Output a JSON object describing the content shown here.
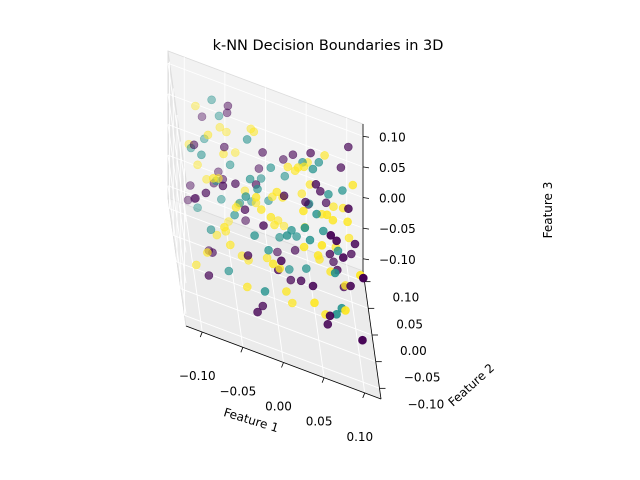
{
  "chart_data": {
    "type": "scatter",
    "projection": "3d",
    "title": "k-NN Decision Boundaries in 3D",
    "xlabel": "Feature 1",
    "ylabel": "Feature 2",
    "zlabel": "Feature 3",
    "xlim": [
      -0.12,
      0.12
    ],
    "ylim": [
      -0.12,
      0.12
    ],
    "zlim": [
      -0.12,
      0.12
    ],
    "xticks": [
      -0.1,
      -0.05,
      0.0,
      0.05,
      0.1
    ],
    "yticks": [
      -0.1,
      -0.05,
      0.0,
      0.05,
      0.1
    ],
    "zticks": [
      -0.1,
      -0.05,
      0.0,
      0.05,
      0.1
    ],
    "xtick_labels": [
      "−0.10",
      "−0.05",
      "0.00",
      "0.05",
      "0.10"
    ],
    "ytick_labels": [
      "−0.10",
      "−0.05",
      "0.00",
      "0.05",
      "0.10"
    ],
    "ztick_labels": [
      "−0.10",
      "−0.05",
      "0.00",
      "0.05",
      "0.10"
    ],
    "grid": true,
    "class_colors": [
      "#440154",
      "#21918c",
      "#fde725"
    ],
    "series": [
      {
        "class_index": 0,
        "points": [
          [
            -0.08,
            0.1,
            0.05
          ],
          [
            0.1,
            0.1,
            0.09
          ],
          [
            0.09,
            0.05,
            -0.1
          ],
          [
            -0.1,
            -0.03,
            0.02
          ],
          [
            0.1,
            -0.09,
            -0.06
          ],
          [
            -0.05,
            0.09,
            0.08
          ],
          [
            0.06,
            -0.1,
            0.1
          ],
          [
            -0.09,
            -0.1,
            -0.04
          ],
          [
            0.03,
            0.08,
            0.06
          ],
          [
            -0.02,
            -0.06,
            -0.09
          ],
          [
            0.07,
            0.02,
            -0.03
          ],
          [
            -0.06,
            0.04,
            0.01
          ],
          [
            0.01,
            -0.02,
            0.07
          ],
          [
            0.08,
            -0.05,
            0.03
          ],
          [
            -0.03,
            0.06,
            -0.06
          ],
          [
            0.05,
            0.09,
            -0.02
          ],
          [
            -0.07,
            -0.07,
            0.09
          ],
          [
            0.02,
            0.0,
            -0.08
          ],
          [
            -0.1,
            0.07,
            -0.07
          ],
          [
            0.09,
            -0.01,
            0.08
          ],
          [
            -0.01,
            0.1,
            0.0
          ],
          [
            0.04,
            -0.08,
            -0.01
          ],
          [
            -0.04,
            -0.04,
            0.04
          ],
          [
            0.1,
            0.06,
            -0.05
          ],
          [
            -0.08,
            0.01,
            -0.09
          ],
          [
            0.06,
            0.04,
            0.05
          ],
          [
            0.0,
            -0.09,
            0.02
          ],
          [
            -0.05,
            0.08,
            0.1
          ],
          [
            0.08,
            0.08,
            -0.09
          ],
          [
            -0.09,
            -0.06,
            0.06
          ],
          [
            0.03,
            -0.03,
            -0.05
          ],
          [
            -0.02,
            0.03,
            0.03
          ],
          [
            0.07,
            -0.07,
            0.07
          ],
          [
            -0.06,
            0.1,
            -0.03
          ],
          [
            0.1,
            0.01,
            0.01
          ],
          [
            -0.03,
            -0.1,
            -0.07
          ],
          [
            0.05,
            0.06,
            0.09
          ],
          [
            -0.07,
            0.05,
            -0.01
          ],
          [
            0.01,
            0.07,
            -0.1
          ],
          [
            0.09,
            -0.04,
            -0.02
          ],
          [
            -0.1,
            -0.01,
            0.09
          ],
          [
            0.04,
            0.02,
            0.04
          ],
          [
            -0.04,
            -0.08,
            0.0
          ],
          [
            0.06,
            -0.06,
            -0.08
          ],
          [
            -0.01,
            0.05,
            0.07
          ],
          [
            0.08,
            0.03,
            -0.06
          ],
          [
            -0.08,
            -0.04,
            -0.05
          ],
          [
            0.02,
            0.1,
            0.03
          ],
          [
            -0.05,
            -0.02,
            0.06
          ],
          [
            0.1,
            -0.1,
            0.05
          ],
          [
            0.07,
            0.07,
            0.01
          ],
          [
            -0.09,
            0.09,
            -0.08
          ],
          [
            0.0,
            -0.05,
            -0.03
          ],
          [
            0.05,
            -0.01,
            0.1
          ],
          [
            -0.06,
            0.02,
            0.08
          ],
          [
            0.03,
            0.05,
            -0.07
          ],
          [
            -0.02,
            -0.07,
            0.05
          ],
          [
            0.09,
            0.09,
            0.06
          ],
          [
            -0.1,
            0.04,
            -0.02
          ],
          [
            0.06,
            -0.09,
            -0.04
          ]
        ]
      },
      {
        "class_index": 1,
        "points": [
          [
            -0.03,
            0.04,
            0.09
          ],
          [
            0.02,
            0.08,
            0.02
          ],
          [
            -0.06,
            0.06,
            -0.04
          ],
          [
            0.05,
            -0.02,
            0.06
          ],
          [
            -0.01,
            -0.03,
            -0.02
          ],
          [
            0.04,
            0.01,
            -0.06
          ],
          [
            -0.08,
            0.07,
            0.04
          ],
          [
            0.07,
            -0.05,
            0.0
          ],
          [
            0.0,
            0.05,
            0.05
          ],
          [
            -0.04,
            -0.05,
            0.07
          ],
          [
            0.03,
            0.03,
            -0.03
          ],
          [
            -0.07,
            0.02,
            0.02
          ],
          [
            0.06,
            0.06,
            0.08
          ],
          [
            -0.02,
            0.09,
            -0.05
          ],
          [
            0.08,
            -0.03,
            -0.07
          ],
          [
            -0.05,
            -0.01,
            0.0
          ],
          [
            0.01,
            -0.06,
            0.04
          ],
          [
            -0.09,
            0.05,
            -0.06
          ],
          [
            0.05,
            0.08,
            -0.01
          ],
          [
            -0.03,
            0.0,
            0.06
          ],
          [
            0.04,
            -0.04,
            0.03
          ],
          [
            -0.06,
            0.09,
            0.07
          ],
          [
            0.02,
            0.02,
            -0.08
          ],
          [
            -0.01,
            0.07,
            0.01
          ],
          [
            0.07,
            0.04,
            0.05
          ],
          [
            -0.08,
            -0.02,
            -0.03
          ],
          [
            0.03,
            -0.08,
            0.08
          ],
          [
            -0.04,
            0.03,
            -0.01
          ],
          [
            0.06,
            0.0,
            0.02
          ],
          [
            -0.02,
            -0.09,
            -0.04
          ],
          [
            0.09,
            0.07,
            0.04
          ],
          [
            -0.07,
            0.08,
            0.1
          ],
          [
            0.01,
            0.04,
            -0.05
          ],
          [
            -0.05,
            0.05,
            0.03
          ],
          [
            0.04,
            0.06,
            0.07
          ],
          [
            -0.03,
            -0.06,
            0.02
          ],
          [
            0.08,
            0.02,
            -0.02
          ],
          [
            -0.1,
            0.03,
            0.05
          ],
          [
            0.02,
            -0.01,
            0.01
          ],
          [
            -0.06,
            -0.04,
            -0.07
          ],
          [
            0.05,
            0.03,
            0.09
          ],
          [
            0.0,
            0.08,
            -0.03
          ],
          [
            -0.02,
            0.01,
            0.04
          ],
          [
            0.07,
            -0.07,
            -0.05
          ],
          [
            -0.09,
            0.0,
            0.07
          ]
        ]
      },
      {
        "class_index": 2,
        "points": [
          [
            0.0,
            0.0,
            0.0
          ],
          [
            -0.06,
            0.03,
            0.06
          ],
          [
            0.05,
            0.07,
            0.03
          ],
          [
            -0.02,
            -0.04,
            0.05
          ],
          [
            0.08,
            0.05,
            -0.04
          ],
          [
            -0.09,
            -0.08,
            -0.02
          ],
          [
            0.03,
            -0.06,
            0.09
          ],
          [
            -0.04,
            0.09,
            0.02
          ],
          [
            0.06,
            -0.03,
            -0.09
          ],
          [
            -0.07,
            0.01,
            -0.06
          ],
          [
            0.02,
            0.04,
            0.07
          ],
          [
            -0.01,
            -0.09,
            0.01
          ],
          [
            0.09,
            0.0,
            0.05
          ],
          [
            -0.05,
            0.07,
            -0.08
          ],
          [
            0.04,
            -0.1,
            -0.02
          ],
          [
            -0.08,
            -0.05,
            0.08
          ],
          [
            0.01,
            0.06,
            -0.04
          ],
          [
            -0.03,
            0.02,
            -0.09
          ],
          [
            0.07,
            0.09,
            0.07
          ],
          [
            -0.1,
            0.06,
            0.03
          ],
          [
            0.05,
            -0.04,
            0.01
          ],
          [
            -0.02,
            0.1,
            0.06
          ],
          [
            0.1,
            -0.06,
            0.02
          ],
          [
            -0.06,
            -0.06,
            -0.01
          ],
          [
            0.03,
            0.01,
            0.1
          ],
          [
            -0.04,
            -0.07,
            -0.06
          ],
          [
            0.06,
            0.05,
            -0.07
          ],
          [
            -0.08,
            0.04,
            0.0
          ],
          [
            0.0,
            -0.03,
            0.08
          ],
          [
            0.08,
            0.08,
            0.0
          ],
          [
            -0.05,
            -0.03,
            0.03
          ],
          [
            0.02,
            0.09,
            -0.07
          ],
          [
            -0.01,
            -0.01,
            -0.05
          ],
          [
            0.07,
            -0.02,
            0.06
          ],
          [
            -0.09,
            0.08,
            0.08
          ],
          [
            0.04,
            0.03,
            -0.01
          ],
          [
            -0.03,
            -0.08,
            0.1
          ],
          [
            0.09,
            0.03,
            -0.08
          ],
          [
            -0.07,
            -0.01,
            0.05
          ],
          [
            0.01,
            -0.05,
            -0.06
          ],
          [
            0.05,
            0.1,
            0.04
          ],
          [
            -0.06,
            0.0,
            -0.04
          ],
          [
            0.03,
            -0.07,
            0.04
          ],
          [
            -0.02,
            0.06,
            0.09
          ],
          [
            0.1,
            0.04,
            0.08
          ],
          [
            -0.1,
            -0.04,
            -0.08
          ],
          [
            0.06,
            0.02,
            0.03
          ],
          [
            -0.04,
            0.05,
            -0.03
          ],
          [
            0.0,
            0.03,
            0.02
          ],
          [
            0.08,
            -0.08,
            -0.03
          ],
          [
            -0.08,
            0.02,
            0.09
          ],
          [
            0.02,
            -0.02,
            -0.1
          ],
          [
            -0.05,
            0.1,
            0.04
          ],
          [
            0.04,
            0.07,
            0.01
          ],
          [
            -0.01,
            -0.06,
            0.06
          ],
          [
            0.07,
            0.01,
            -0.05
          ],
          [
            -0.09,
            0.05,
            0.01
          ],
          [
            0.05,
            -0.09,
            0.07
          ],
          [
            -0.03,
            0.07,
            -0.02
          ],
          [
            0.01,
            0.0,
            0.05
          ],
          [
            0.09,
            0.06,
            0.02
          ],
          [
            -0.07,
            -0.09,
            0.04
          ],
          [
            0.03,
            0.05,
            0.06
          ],
          [
            -0.04,
            0.0,
            -0.07
          ],
          [
            0.06,
            -0.05,
            0.09
          ],
          [
            -0.02,
            0.03,
            0.0
          ],
          [
            0.1,
            0.09,
            -0.05
          ],
          [
            -0.06,
            0.08,
            0.06
          ],
          [
            0.0,
            -0.07,
            -0.01
          ],
          [
            0.04,
            0.04,
            0.08
          ]
        ]
      }
    ]
  }
}
